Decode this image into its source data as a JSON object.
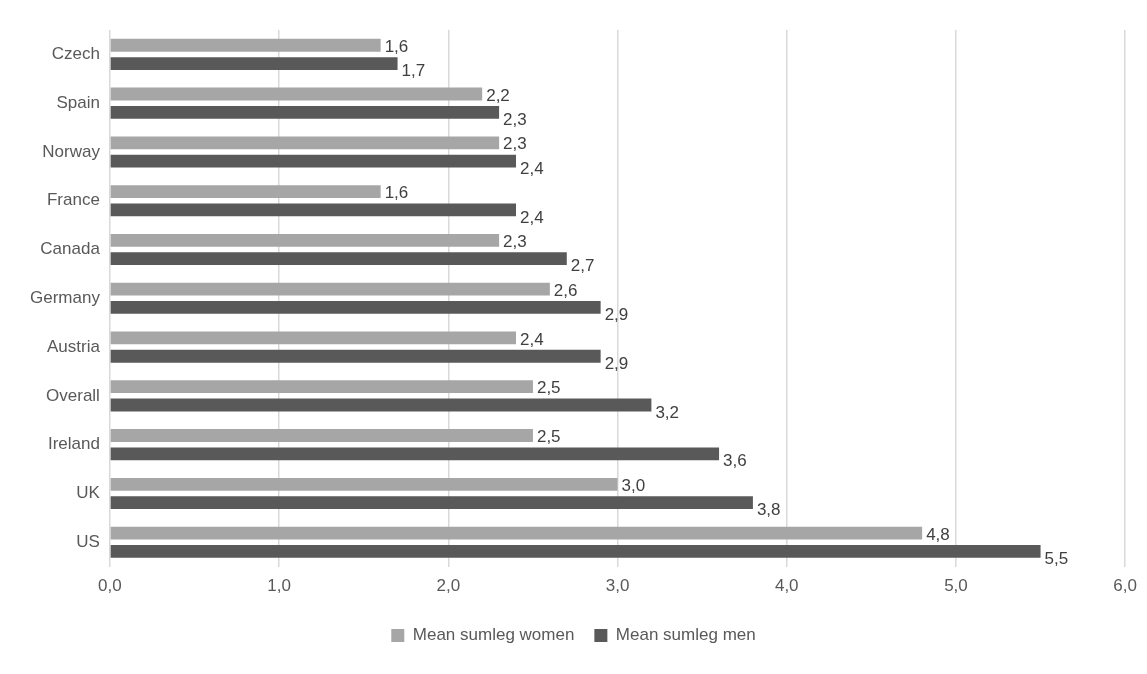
{
  "chart_data": {
    "type": "bar",
    "orientation": "horizontal",
    "categories": [
      "Czech",
      "Spain",
      "Norway",
      "France",
      "Canada",
      "Germany",
      "Austria",
      "Overall",
      "Ireland",
      "UK",
      "US"
    ],
    "series": [
      {
        "name": "Mean sumleg women",
        "color": "#a6a6a6",
        "values": [
          1.6,
          2.2,
          2.3,
          1.6,
          2.3,
          2.6,
          2.4,
          2.5,
          2.5,
          3.0,
          4.8
        ],
        "value_labels": [
          "1,6",
          "2,2",
          "2,3",
          "1,6",
          "2,3",
          "2,6",
          "2,4",
          "2,5",
          "2,5",
          "3,0",
          "4,8"
        ]
      },
      {
        "name": "Mean sumleg men",
        "color": "#595959",
        "values": [
          1.7,
          2.3,
          2.4,
          2.4,
          2.7,
          2.9,
          2.9,
          3.2,
          3.6,
          3.8,
          5.5
        ],
        "value_labels": [
          "1,7",
          "2,3",
          "2,4",
          "2,4",
          "2,7",
          "2,9",
          "2,9",
          "3,2",
          "3,6",
          "3,8",
          "5,5"
        ]
      }
    ],
    "xlim": [
      0,
      6
    ],
    "xticks": [
      {
        "value": 0,
        "label": "0,0"
      },
      {
        "value": 1,
        "label": "1,0"
      },
      {
        "value": 2,
        "label": "2,0"
      },
      {
        "value": 3,
        "label": "3,0"
      },
      {
        "value": 4,
        "label": "4,0"
      },
      {
        "value": 5,
        "label": "5,0"
      },
      {
        "value": 6,
        "label": "6,0"
      }
    ],
    "grid": "x",
    "legend": "bottom"
  }
}
